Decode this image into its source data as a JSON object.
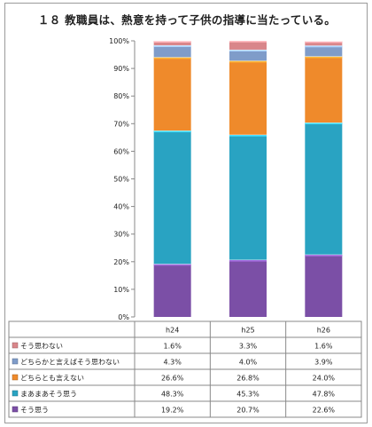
{
  "title": "１８ 教職員は、熱意を持って子供の指導に当たっている。",
  "chart_data": {
    "type": "bar",
    "stacked": true,
    "categories": [
      "h24",
      "h25",
      "h26"
    ],
    "series": [
      {
        "name": "そう思う",
        "values": [
          19.2,
          20.7,
          22.6
        ],
        "color": "#7b4fa6",
        "labels": [
          "19.2%",
          "20.7%",
          "22.6%"
        ]
      },
      {
        "name": "まあまあそう思う",
        "values": [
          48.3,
          45.3,
          47.8
        ],
        "color": "#29a3c2",
        "labels": [
          "48.3%",
          "45.3%",
          "47.8%"
        ]
      },
      {
        "name": "どちらとも言えない",
        "values": [
          26.6,
          26.8,
          24.0
        ],
        "color": "#ef8a2b",
        "labels": [
          "26.6%",
          "26.8%",
          "24.0%"
        ]
      },
      {
        "name": "どちらかと言えばそう思わない",
        "values": [
          4.3,
          4.0,
          3.9
        ],
        "color": "#7f9cc9",
        "labels": [
          "4.3%",
          "4.0%",
          "3.9%"
        ]
      },
      {
        "name": "そう思わない",
        "values": [
          1.6,
          3.3,
          1.6
        ],
        "color": "#d9868a",
        "labels": [
          "1.6%",
          "3.3%",
          "1.6%"
        ]
      }
    ],
    "ylim": [
      0,
      100
    ],
    "yticks": [
      "0%",
      "10%",
      "20%",
      "30%",
      "40%",
      "50%",
      "60%",
      "70%",
      "80%",
      "90%",
      "100%"
    ],
    "grid": false,
    "legend": "data-table"
  }
}
